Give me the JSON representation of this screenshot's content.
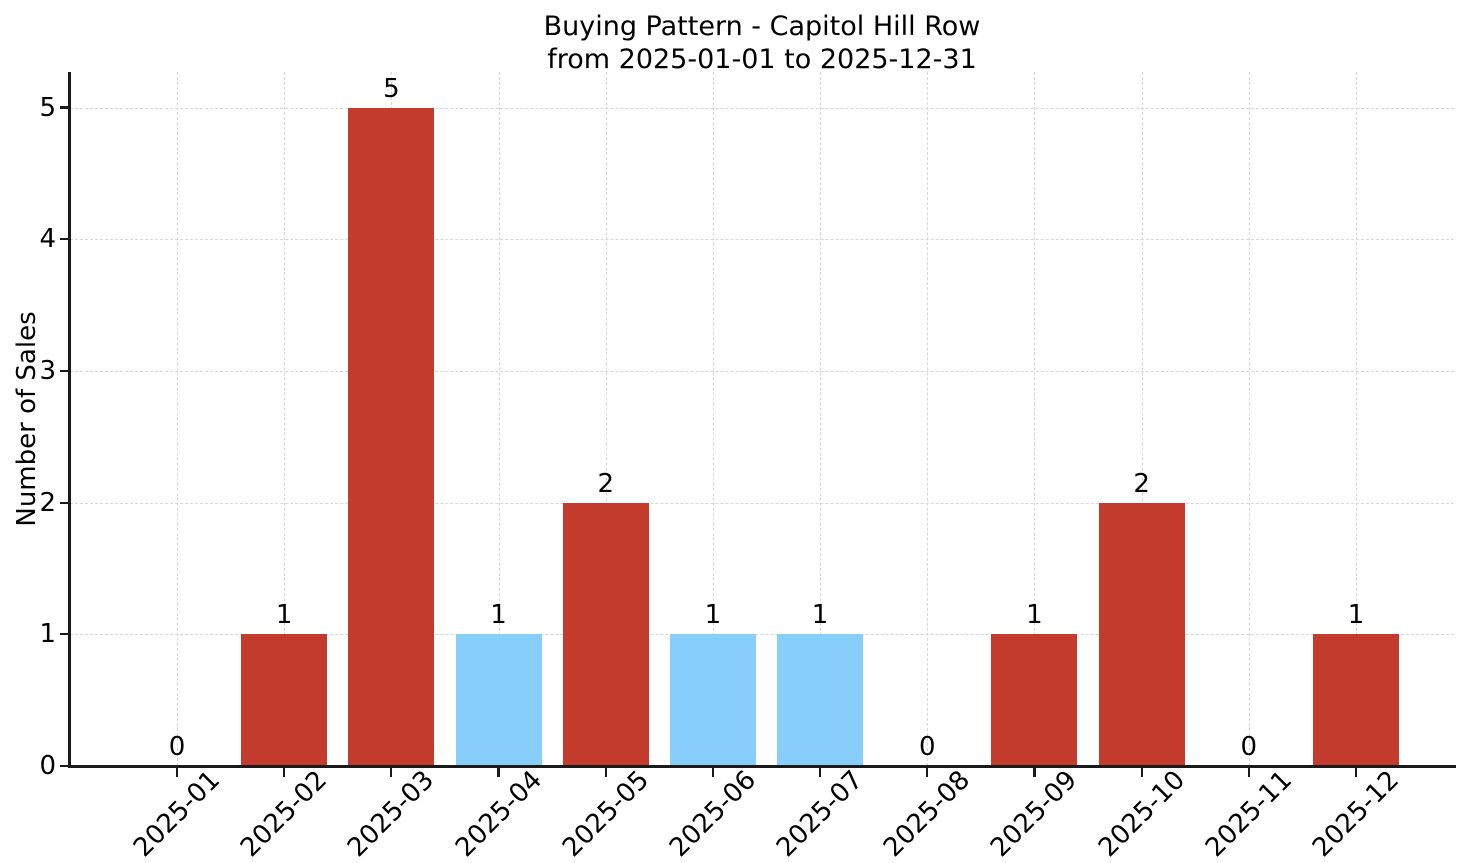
{
  "title": {
    "line1": "Buying Pattern - Capitol Hill Row",
    "line2": "from 2025-01-01 to 2025-12-31"
  },
  "chart_data": {
    "type": "bar",
    "title": "Buying Pattern - Capitol Hill Row\nfrom 2025-01-01 to 2025-12-31",
    "xlabel": "",
    "ylabel": "Number of Sales",
    "categories": [
      "2025-01",
      "2025-02",
      "2025-03",
      "2025-04",
      "2025-05",
      "2025-06",
      "2025-07",
      "2025-08",
      "2025-09",
      "2025-10",
      "2025-11",
      "2025-12"
    ],
    "values": [
      0,
      1,
      5,
      1,
      2,
      1,
      1,
      0,
      1,
      2,
      0,
      1
    ],
    "value_labels": [
      "0",
      "1",
      "5",
      "1",
      "2",
      "1",
      "1",
      "0",
      "1",
      "2",
      "0",
      "1"
    ],
    "bar_colors": [
      null,
      "#c33b2c",
      "#c33b2c",
      "#87cefa",
      "#c33b2c",
      "#87cefa",
      "#87cefa",
      null,
      "#c33b2c",
      "#c33b2c",
      null,
      "#c33b2c"
    ],
    "palette": {
      "red_bar": "#c33b2c",
      "blue_bar": "#87cefa",
      "grid": "#d7d7d7",
      "axis": "#1a1a1a",
      "text": "#000000",
      "background": "#ffffff"
    },
    "yticks": [
      0,
      1,
      2,
      3,
      4,
      5
    ],
    "ylim": [
      0,
      5.27
    ],
    "grid": true,
    "grid_style": "dashed",
    "legend_position": "none"
  }
}
